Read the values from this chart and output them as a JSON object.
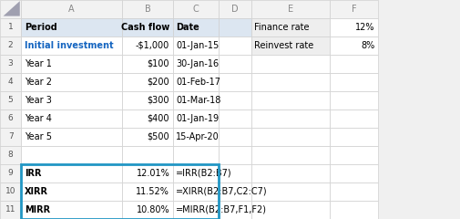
{
  "col_bounds": [
    0.0,
    0.046,
    0.265,
    0.375,
    0.475,
    0.545,
    0.715,
    0.82
  ],
  "n_rows": 12,
  "header_bg": "#dce6f1",
  "cell_bg": "#ffffff",
  "row_num_bg": "#f2f2f2",
  "col_header_bg": "#f2f2f2",
  "grid_color": "#d0d0d0",
  "finance_rate_bg": "#eeeeee",
  "col_letters": [
    "A",
    "B",
    "C",
    "D",
    "E",
    "F"
  ],
  "row_labels": [
    "1",
    "2",
    "3",
    "4",
    "5",
    "6",
    "7",
    "8",
    "9",
    "10",
    "11"
  ],
  "periods": [
    "Initial investment",
    "Year 1",
    "Year 2",
    "Year 3",
    "Year 4",
    "Year 5"
  ],
  "cashflows": [
    "-$1,000",
    "$100",
    "$200",
    "$300",
    "$400",
    "$500"
  ],
  "dates": [
    "01-Jan-15",
    "30-Jan-16",
    "01-Feb-17",
    "01-Mar-18",
    "01-Jan-19",
    "15-Apr-20"
  ],
  "result_labels": [
    "IRR",
    "XIRR",
    "MIRR"
  ],
  "result_values": [
    "12.01%",
    "11.52%",
    "10.80%"
  ],
  "result_formulas": [
    "=IRR(B2:B7)",
    "=XIRR(B2:B7,C2:C7)",
    "=MIRR(B2:B7,F1,F2)"
  ],
  "finance_rate_label": "Finance rate",
  "finance_rate_val": "12%",
  "reinvest_rate_label": "Reinvest rate",
  "reinvest_rate_val": "8%",
  "blue_box_color": "#2196c4",
  "font_size": 7.0,
  "col_letter_color": "#888888",
  "initial_invest_color": "#1565c0",
  "row_num_color": "#555555",
  "bg_color": "#f0f0f0"
}
